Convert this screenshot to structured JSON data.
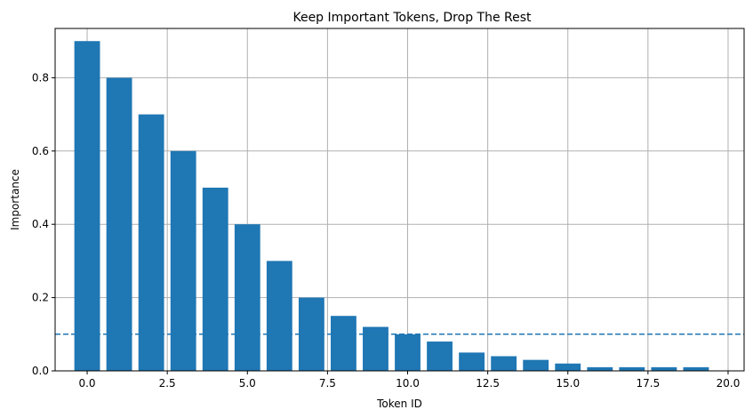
{
  "chart_data": {
    "type": "bar",
    "title": "Keep Important Tokens, Drop The Rest",
    "xlabel": "Token ID",
    "ylabel": "Importance",
    "x": [
      0,
      1,
      2,
      3,
      4,
      5,
      6,
      7,
      8,
      9,
      10,
      11,
      12,
      13,
      14,
      15,
      16,
      17,
      18,
      19
    ],
    "values": [
      0.9,
      0.8,
      0.7,
      0.6,
      0.5,
      0.4,
      0.3,
      0.2,
      0.15,
      0.12,
      0.1,
      0.08,
      0.05,
      0.04,
      0.03,
      0.02,
      0.01,
      0.01,
      0.01,
      0.01
    ],
    "xlim": [
      -1.0,
      20.5
    ],
    "ylim": [
      0,
      0.9345
    ],
    "xticks": [
      0.0,
      2.5,
      5.0,
      7.5,
      10.0,
      12.5,
      15.0,
      17.5,
      20.0
    ],
    "xtick_labels": [
      "0.0",
      "2.5",
      "5.0",
      "7.5",
      "10.0",
      "12.5",
      "15.0",
      "17.5",
      "20.0"
    ],
    "yticks": [
      0.0,
      0.2,
      0.4,
      0.6,
      0.8
    ],
    "ytick_labels": [
      "0.0",
      "0.2",
      "0.4",
      "0.6",
      "0.8"
    ],
    "threshold": 0.1,
    "grid": true,
    "bar_color": "#1f77b4",
    "threshold_color": "#1f77b4"
  }
}
